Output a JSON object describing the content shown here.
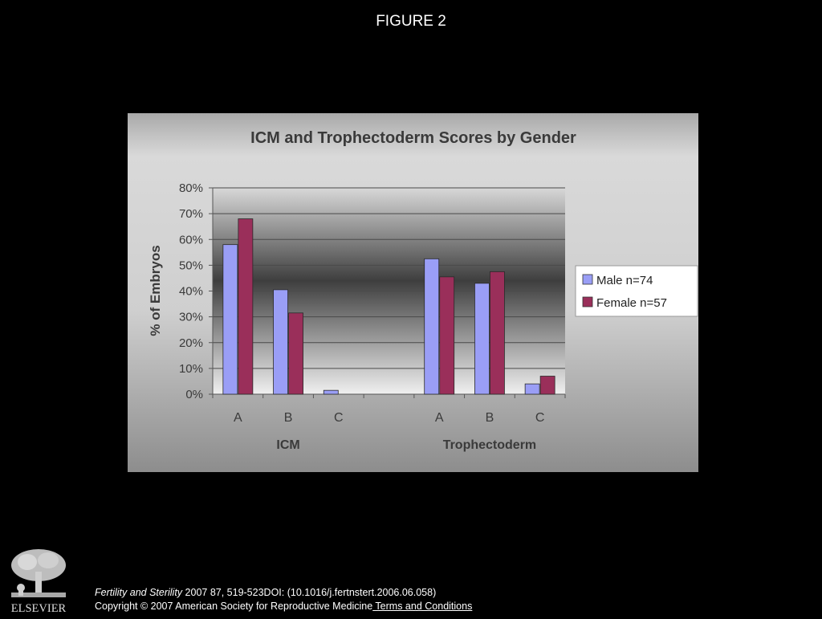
{
  "figure_title": "FIGURE 2",
  "chart_data": {
    "type": "bar",
    "title": "ICM and Trophectoderm Scores by Gender",
    "xlabel": "",
    "ylabel": "% of Embryos",
    "ylim": [
      0,
      80
    ],
    "yticks": [
      "0%",
      "10%",
      "20%",
      "30%",
      "40%",
      "50%",
      "60%",
      "70%",
      "80%"
    ],
    "groups": [
      {
        "name": "ICM",
        "categories": [
          "A",
          "B",
          "C"
        ]
      },
      {
        "name": "Trophectoderm",
        "categories": [
          "A",
          "B",
          "C"
        ]
      }
    ],
    "categories": [
      "A",
      "B",
      "C",
      "A",
      "B",
      "C"
    ],
    "series": [
      {
        "name": "Male n=74",
        "color": "#9a9ef6",
        "values": [
          58,
          40.5,
          1.5,
          52.5,
          43,
          4
        ]
      },
      {
        "name": "Female n=57",
        "color": "#9a2f5a",
        "values": [
          68,
          31.5,
          0,
          45.5,
          47.5,
          7
        ]
      }
    ],
    "grid": true,
    "legend_position": "right"
  },
  "publisher": {
    "logo_text": "ELSEVIER"
  },
  "citation": {
    "journal": "Fertility and Sterility",
    "details": " 2007 87, 519-523DOI: (10.1016/j.fertnstert.2006.06.058)",
    "copyright": "Copyright © 2007 American Society for Reproductive Medicine",
    "link_text": " Terms and Conditions"
  }
}
